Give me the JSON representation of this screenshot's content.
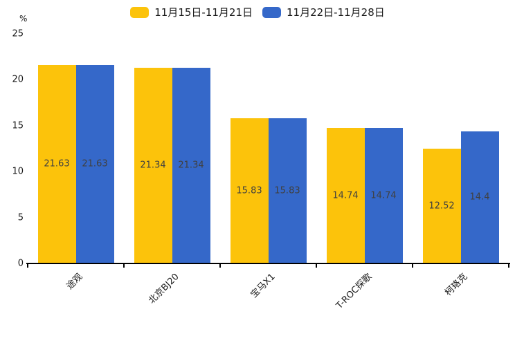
{
  "chart_data": {
    "type": "bar",
    "title": "",
    "categories": [
      "途观",
      "北京BJ20",
      "宝马X1",
      "T-ROC探歌",
      "柯珞克"
    ],
    "series": [
      {
        "name": "11月15日-11月21日",
        "color": "#FCC30B",
        "values": [
          21.63,
          21.34,
          15.83,
          14.74,
          12.52
        ]
      },
      {
        "name": "11月22日-11月28日",
        "color": "#3568C9",
        "values": [
          21.63,
          21.34,
          15.83,
          14.74,
          14.4
        ]
      }
    ],
    "xlabel": "",
    "ylabel": "",
    "y_unit": "%",
    "ylim": [
      0,
      25
    ],
    "yticks": [
      0,
      5,
      10,
      15,
      20,
      25
    ],
    "grid": false,
    "legend_position": "top",
    "value_labels": "inside-center",
    "value_label_color": "#404040",
    "axis_color": "#000000",
    "background_color": "#ffffff"
  }
}
